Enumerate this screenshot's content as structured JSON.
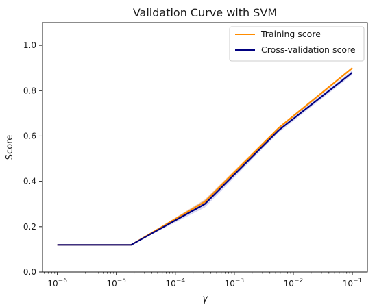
{
  "chart_data": {
    "type": "line",
    "title": "Validation Curve with SVM",
    "xlabel": "γ",
    "ylabel": "Score",
    "x_scale": "log",
    "xlim": [
      5.6e-07,
      0.18
    ],
    "ylim": [
      0.0,
      1.1
    ],
    "grid": false,
    "legend_position": "top-right",
    "x": [
      1e-06,
      1.78e-05,
      0.000316,
      0.00562,
      0.1
    ],
    "x_ticks": [
      {
        "value": 1e-06,
        "base": "10",
        "exp": "−6"
      },
      {
        "value": 1e-05,
        "base": "10",
        "exp": "−5"
      },
      {
        "value": 0.0001,
        "base": "10",
        "exp": "−4"
      },
      {
        "value": 0.001,
        "base": "10",
        "exp": "−3"
      },
      {
        "value": 0.01,
        "base": "10",
        "exp": "−2"
      },
      {
        "value": 0.1,
        "base": "10",
        "exp": "−1"
      }
    ],
    "y_ticks": [
      "0.0",
      "0.2",
      "0.4",
      "0.6",
      "0.8",
      "1.0"
    ],
    "series": [
      {
        "name": "Training score",
        "color": "#ff8c00",
        "band_color": "#ff8c00",
        "values": [
          0.12,
          0.12,
          0.31,
          0.635,
          0.9
        ],
        "band_low": [
          0.12,
          0.12,
          0.3,
          0.63,
          0.895
        ],
        "band_high": [
          0.12,
          0.12,
          0.32,
          0.64,
          0.905
        ]
      },
      {
        "name": "Cross-validation score",
        "color": "#000080",
        "band_color": "#7b7bd9",
        "values": [
          0.12,
          0.12,
          0.3,
          0.625,
          0.88
        ],
        "band_low": [
          0.12,
          0.12,
          0.285,
          0.615,
          0.87
        ],
        "band_high": [
          0.12,
          0.12,
          0.318,
          0.635,
          0.89
        ]
      }
    ]
  }
}
